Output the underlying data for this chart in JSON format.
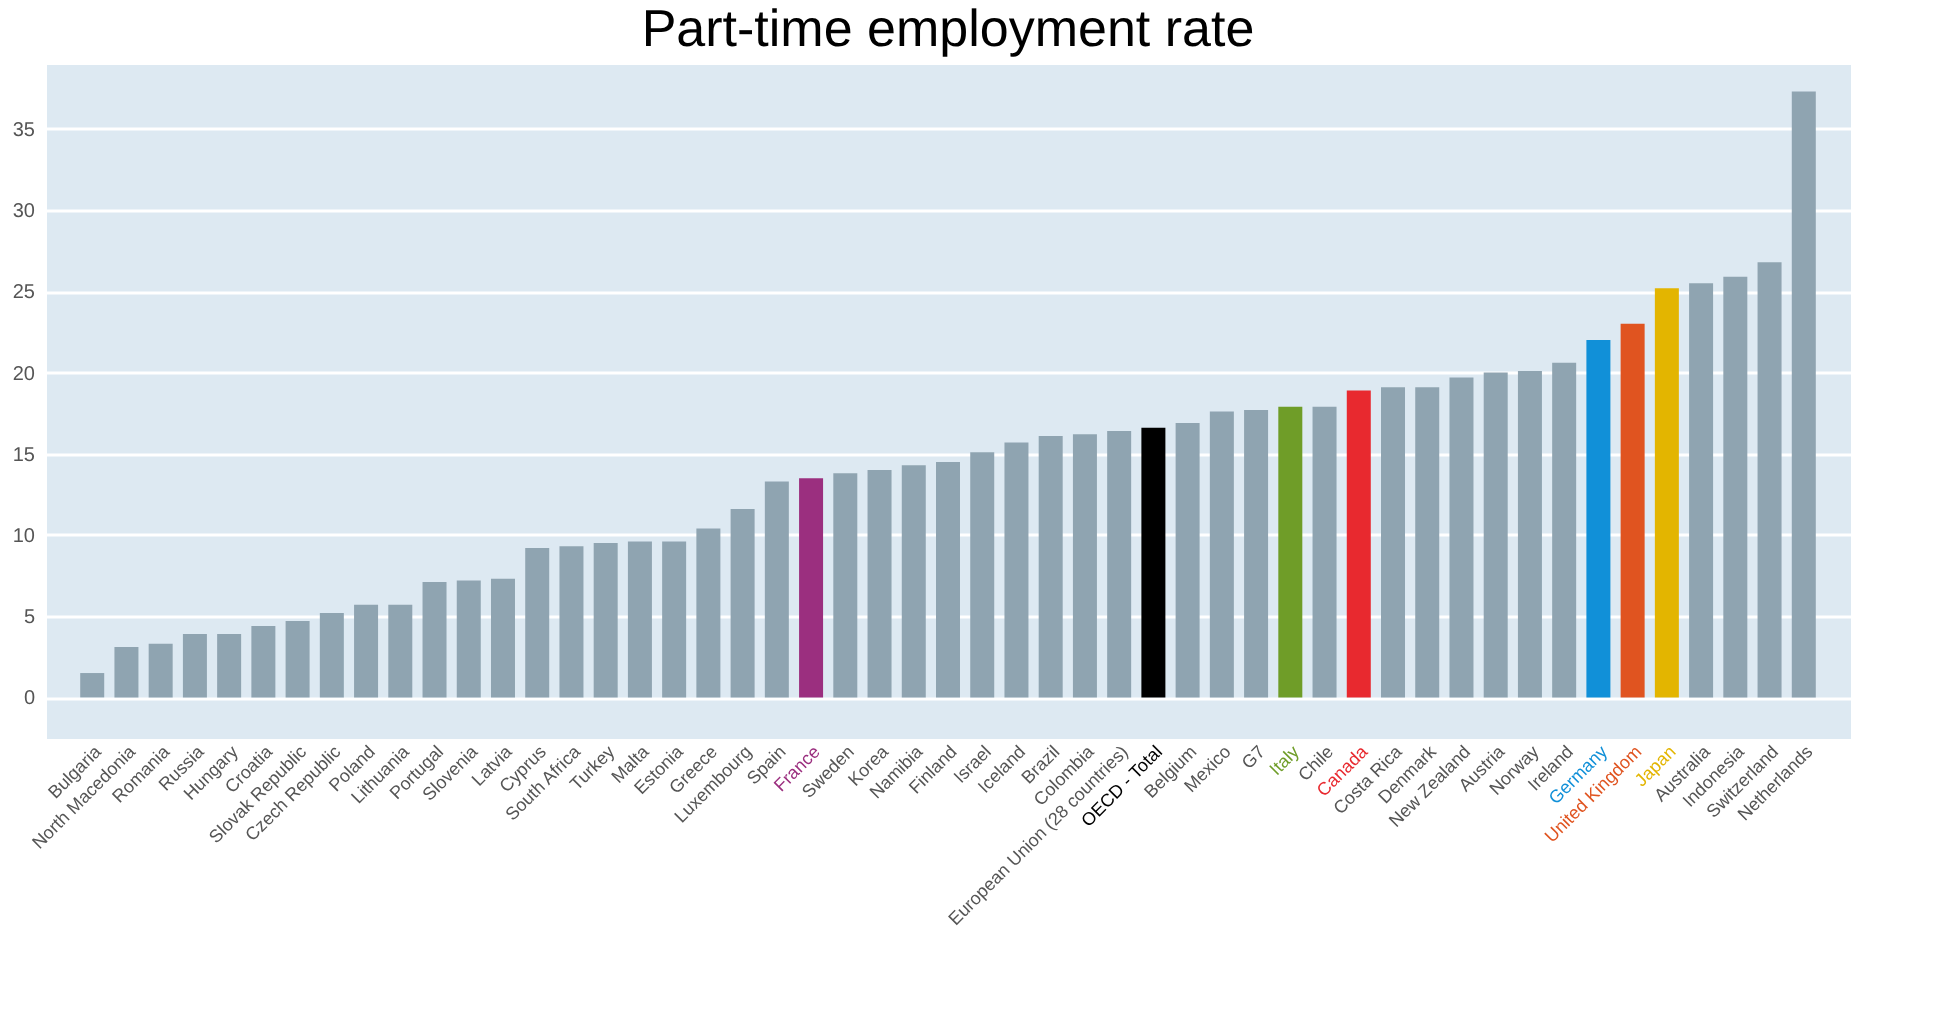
{
  "chart_data": {
    "type": "bar",
    "title": "Part-time employment rate",
    "categories": [
      "Bulgaria",
      "North Macedonia",
      "Romania",
      "Russia",
      "Hungary",
      "Croatia",
      "Slovak Republic",
      "Czech Republic",
      "Poland",
      "Lithuania",
      "Portugal",
      "Slovenia",
      "Latvia",
      "Cyprus",
      "South Africa",
      "Turkey",
      "Malta",
      "Estonia",
      "Greece",
      "Luxembourg",
      "Spain",
      "France",
      "Sweden",
      "Korea",
      "Namibia",
      "Finland",
      "Israel",
      "Iceland",
      "Brazil",
      "Colombia",
      "European Union (28 countries)",
      "OECD - Total",
      "Belgium",
      "Mexico",
      "G7",
      "Italy",
      "Chile",
      "Canada",
      "Costa Rica",
      "Denmark",
      "New Zealand",
      "Austria",
      "Norway",
      "Ireland",
      "Germany",
      "United Kingdom",
      "Japan",
      "Australia",
      "Indonesia",
      "Switzerland",
      "Netherlands"
    ],
    "values": [
      1.5,
      3.1,
      3.3,
      3.9,
      3.9,
      4.4,
      4.7,
      5.2,
      5.7,
      5.7,
      7.1,
      7.2,
      7.3,
      9.2,
      9.3,
      9.5,
      9.6,
      9.6,
      10.4,
      11.6,
      13.3,
      13.5,
      13.8,
      14.0,
      14.3,
      14.5,
      15.1,
      15.7,
      16.1,
      16.2,
      16.4,
      16.6,
      16.9,
      17.6,
      17.7,
      17.9,
      17.9,
      18.9,
      19.1,
      19.1,
      19.7,
      20.0,
      20.1,
      20.6,
      22.0,
      23.0,
      25.2,
      25.5,
      25.9,
      26.8,
      37.3
    ],
    "colors": [
      "#8fa4b1",
      "#8fa4b1",
      "#8fa4b1",
      "#8fa4b1",
      "#8fa4b1",
      "#8fa4b1",
      "#8fa4b1",
      "#8fa4b1",
      "#8fa4b1",
      "#8fa4b1",
      "#8fa4b1",
      "#8fa4b1",
      "#8fa4b1",
      "#8fa4b1",
      "#8fa4b1",
      "#8fa4b1",
      "#8fa4b1",
      "#8fa4b1",
      "#8fa4b1",
      "#8fa4b1",
      "#8fa4b1",
      "#9b2f7f",
      "#8fa4b1",
      "#8fa4b1",
      "#8fa4b1",
      "#8fa4b1",
      "#8fa4b1",
      "#8fa4b1",
      "#8fa4b1",
      "#8fa4b1",
      "#8fa4b1",
      "#000000",
      "#8fa4b1",
      "#8fa4b1",
      "#8fa4b1",
      "#6f9d28",
      "#8fa4b1",
      "#e8292f",
      "#8fa4b1",
      "#8fa4b1",
      "#8fa4b1",
      "#8fa4b1",
      "#8fa4b1",
      "#8fa4b1",
      "#1190d8",
      "#e05420",
      "#e3b500",
      "#8fa4b1",
      "#8fa4b1",
      "#8fa4b1",
      "#8fa4b1"
    ],
    "ylim": [
      -2.5,
      39
    ],
    "yticks": [
      0,
      5,
      10,
      15,
      20,
      25,
      30,
      35
    ],
    "grid": "y"
  }
}
